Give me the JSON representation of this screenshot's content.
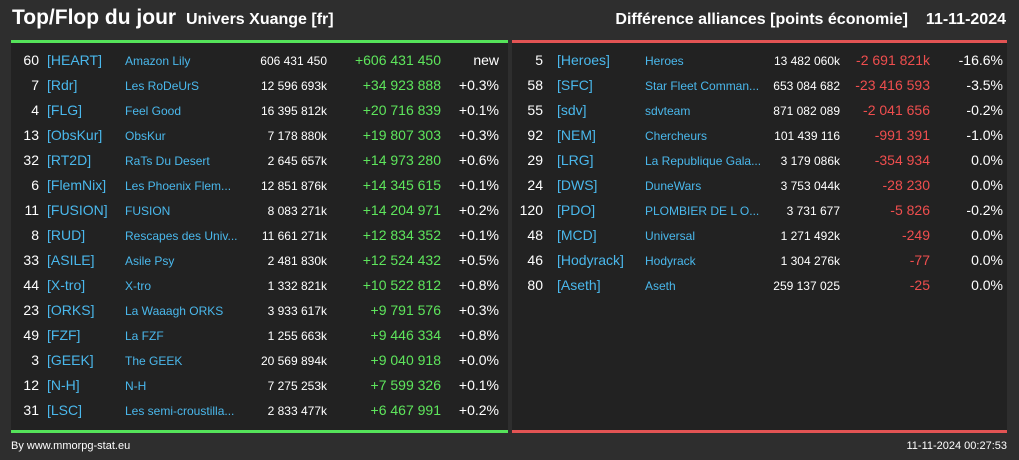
{
  "header": {
    "title": "Top/Flop du jour",
    "universe": "Univers Xuange [fr]",
    "category": "Différence alliances [points économie]",
    "date": "11-11-2024"
  },
  "colors": {
    "background": "#2e2e2e",
    "panel": "#222222",
    "top_accent": "#55e35a",
    "flop_accent": "#e25454",
    "link": "#4ab8ec",
    "positive": "#5ee65c",
    "negative": "#ef4e4e"
  },
  "top": [
    {
      "rank": "60",
      "tag": "[HEART]",
      "name": "Amazon Lily",
      "points": "606 431 450",
      "diff": "+606 431 450",
      "pct": "new"
    },
    {
      "rank": "7",
      "tag": "[Rdr]",
      "name": "Les RoDeUrS",
      "points": "12 596 693k",
      "diff": "+34 923 888",
      "pct": "+0.3%"
    },
    {
      "rank": "4",
      "tag": "[FLG]",
      "name": "Feel Good",
      "points": "16 395 812k",
      "diff": "+20 716 839",
      "pct": "+0.1%"
    },
    {
      "rank": "13",
      "tag": "[ObsKur]",
      "name": "ObsKur",
      "points": "7 178 880k",
      "diff": "+19 807 303",
      "pct": "+0.3%"
    },
    {
      "rank": "32",
      "tag": "[RT2D]",
      "name": "RaTs Du Desert",
      "points": "2 645 657k",
      "diff": "+14 973 280",
      "pct": "+0.6%"
    },
    {
      "rank": "6",
      "tag": "[FlemNix]",
      "name": "Les Phoenix Flem...",
      "points": "12 851 876k",
      "diff": "+14 345 615",
      "pct": "+0.1%"
    },
    {
      "rank": "11",
      "tag": "[FUSION]",
      "name": "FUSION",
      "points": "8 083 271k",
      "diff": "+14 204 971",
      "pct": "+0.2%"
    },
    {
      "rank": "8",
      "tag": "[RUD]",
      "name": "Rescapes des Univ...",
      "points": "11 661 271k",
      "diff": "+12 834 352",
      "pct": "+0.1%"
    },
    {
      "rank": "33",
      "tag": "[ASILE]",
      "name": "Asile Psy",
      "points": "2 481 830k",
      "diff": "+12 524 432",
      "pct": "+0.5%"
    },
    {
      "rank": "44",
      "tag": "[X-tro]",
      "name": "X-tro",
      "points": "1 332 821k",
      "diff": "+10 522 812",
      "pct": "+0.8%"
    },
    {
      "rank": "23",
      "tag": "[ORKS]",
      "name": "La Waaagh ORKS",
      "points": "3 933 617k",
      "diff": "+9 791 576",
      "pct": "+0.3%"
    },
    {
      "rank": "49",
      "tag": "[FZF]",
      "name": "La FZF",
      "points": "1 255 663k",
      "diff": "+9 446 334",
      "pct": "+0.8%"
    },
    {
      "rank": "3",
      "tag": "[GEEK]",
      "name": "The GEEK",
      "points": "20 569 894k",
      "diff": "+9 040 918",
      "pct": "+0.0%"
    },
    {
      "rank": "12",
      "tag": "[N-H]",
      "name": "N-H",
      "points": "7 275 253k",
      "diff": "+7 599 326",
      "pct": "+0.1%"
    },
    {
      "rank": "31",
      "tag": "[LSC]",
      "name": "Les semi-croustilla...",
      "points": "2 833 477k",
      "diff": "+6 467 991",
      "pct": "+0.2%"
    }
  ],
  "flop": [
    {
      "rank": "5",
      "tag": "[Heroes]",
      "name": "Heroes",
      "points": "13 482 060k",
      "diff": "-2 691 821k",
      "pct": "-16.6%"
    },
    {
      "rank": "58",
      "tag": "[SFC]",
      "name": "Star Fleet Comman...",
      "points": "653 084 682",
      "diff": "-23 416 593",
      "pct": "-3.5%"
    },
    {
      "rank": "55",
      "tag": "[sdv]",
      "name": "sdvteam",
      "points": "871 082 089",
      "diff": "-2 041 656",
      "pct": "-0.2%"
    },
    {
      "rank": "92",
      "tag": "[NEM]",
      "name": "Chercheurs",
      "points": "101 439 116",
      "diff": "-991 391",
      "pct": "-1.0%"
    },
    {
      "rank": "29",
      "tag": "[LRG]",
      "name": "La Republique Gala...",
      "points": "3 179 086k",
      "diff": "-354 934",
      "pct": "0.0%"
    },
    {
      "rank": "24",
      "tag": "[DWS]",
      "name": "DuneWars",
      "points": "3 753 044k",
      "diff": "-28 230",
      "pct": "0.0%"
    },
    {
      "rank": "120",
      "tag": "[PDO]",
      "name": "PLOMBIER DE L O...",
      "points": "3 731 677",
      "diff": "-5 826",
      "pct": "-0.2%"
    },
    {
      "rank": "48",
      "tag": "[MCD]",
      "name": "Universal",
      "points": "1 271 492k",
      "diff": "-249",
      "pct": "0.0%"
    },
    {
      "rank": "46",
      "tag": "[Hodyrack]",
      "name": "Hodyrack",
      "points": "1 304 276k",
      "diff": "-77",
      "pct": "0.0%"
    },
    {
      "rank": "80",
      "tag": "[Aseth]",
      "name": "Aseth",
      "points": "259 137 025",
      "diff": "-25",
      "pct": "0.0%"
    }
  ],
  "footer": {
    "credit": "By www.mmorpg-stat.eu",
    "timestamp": "11-11-2024 00:27:53"
  }
}
